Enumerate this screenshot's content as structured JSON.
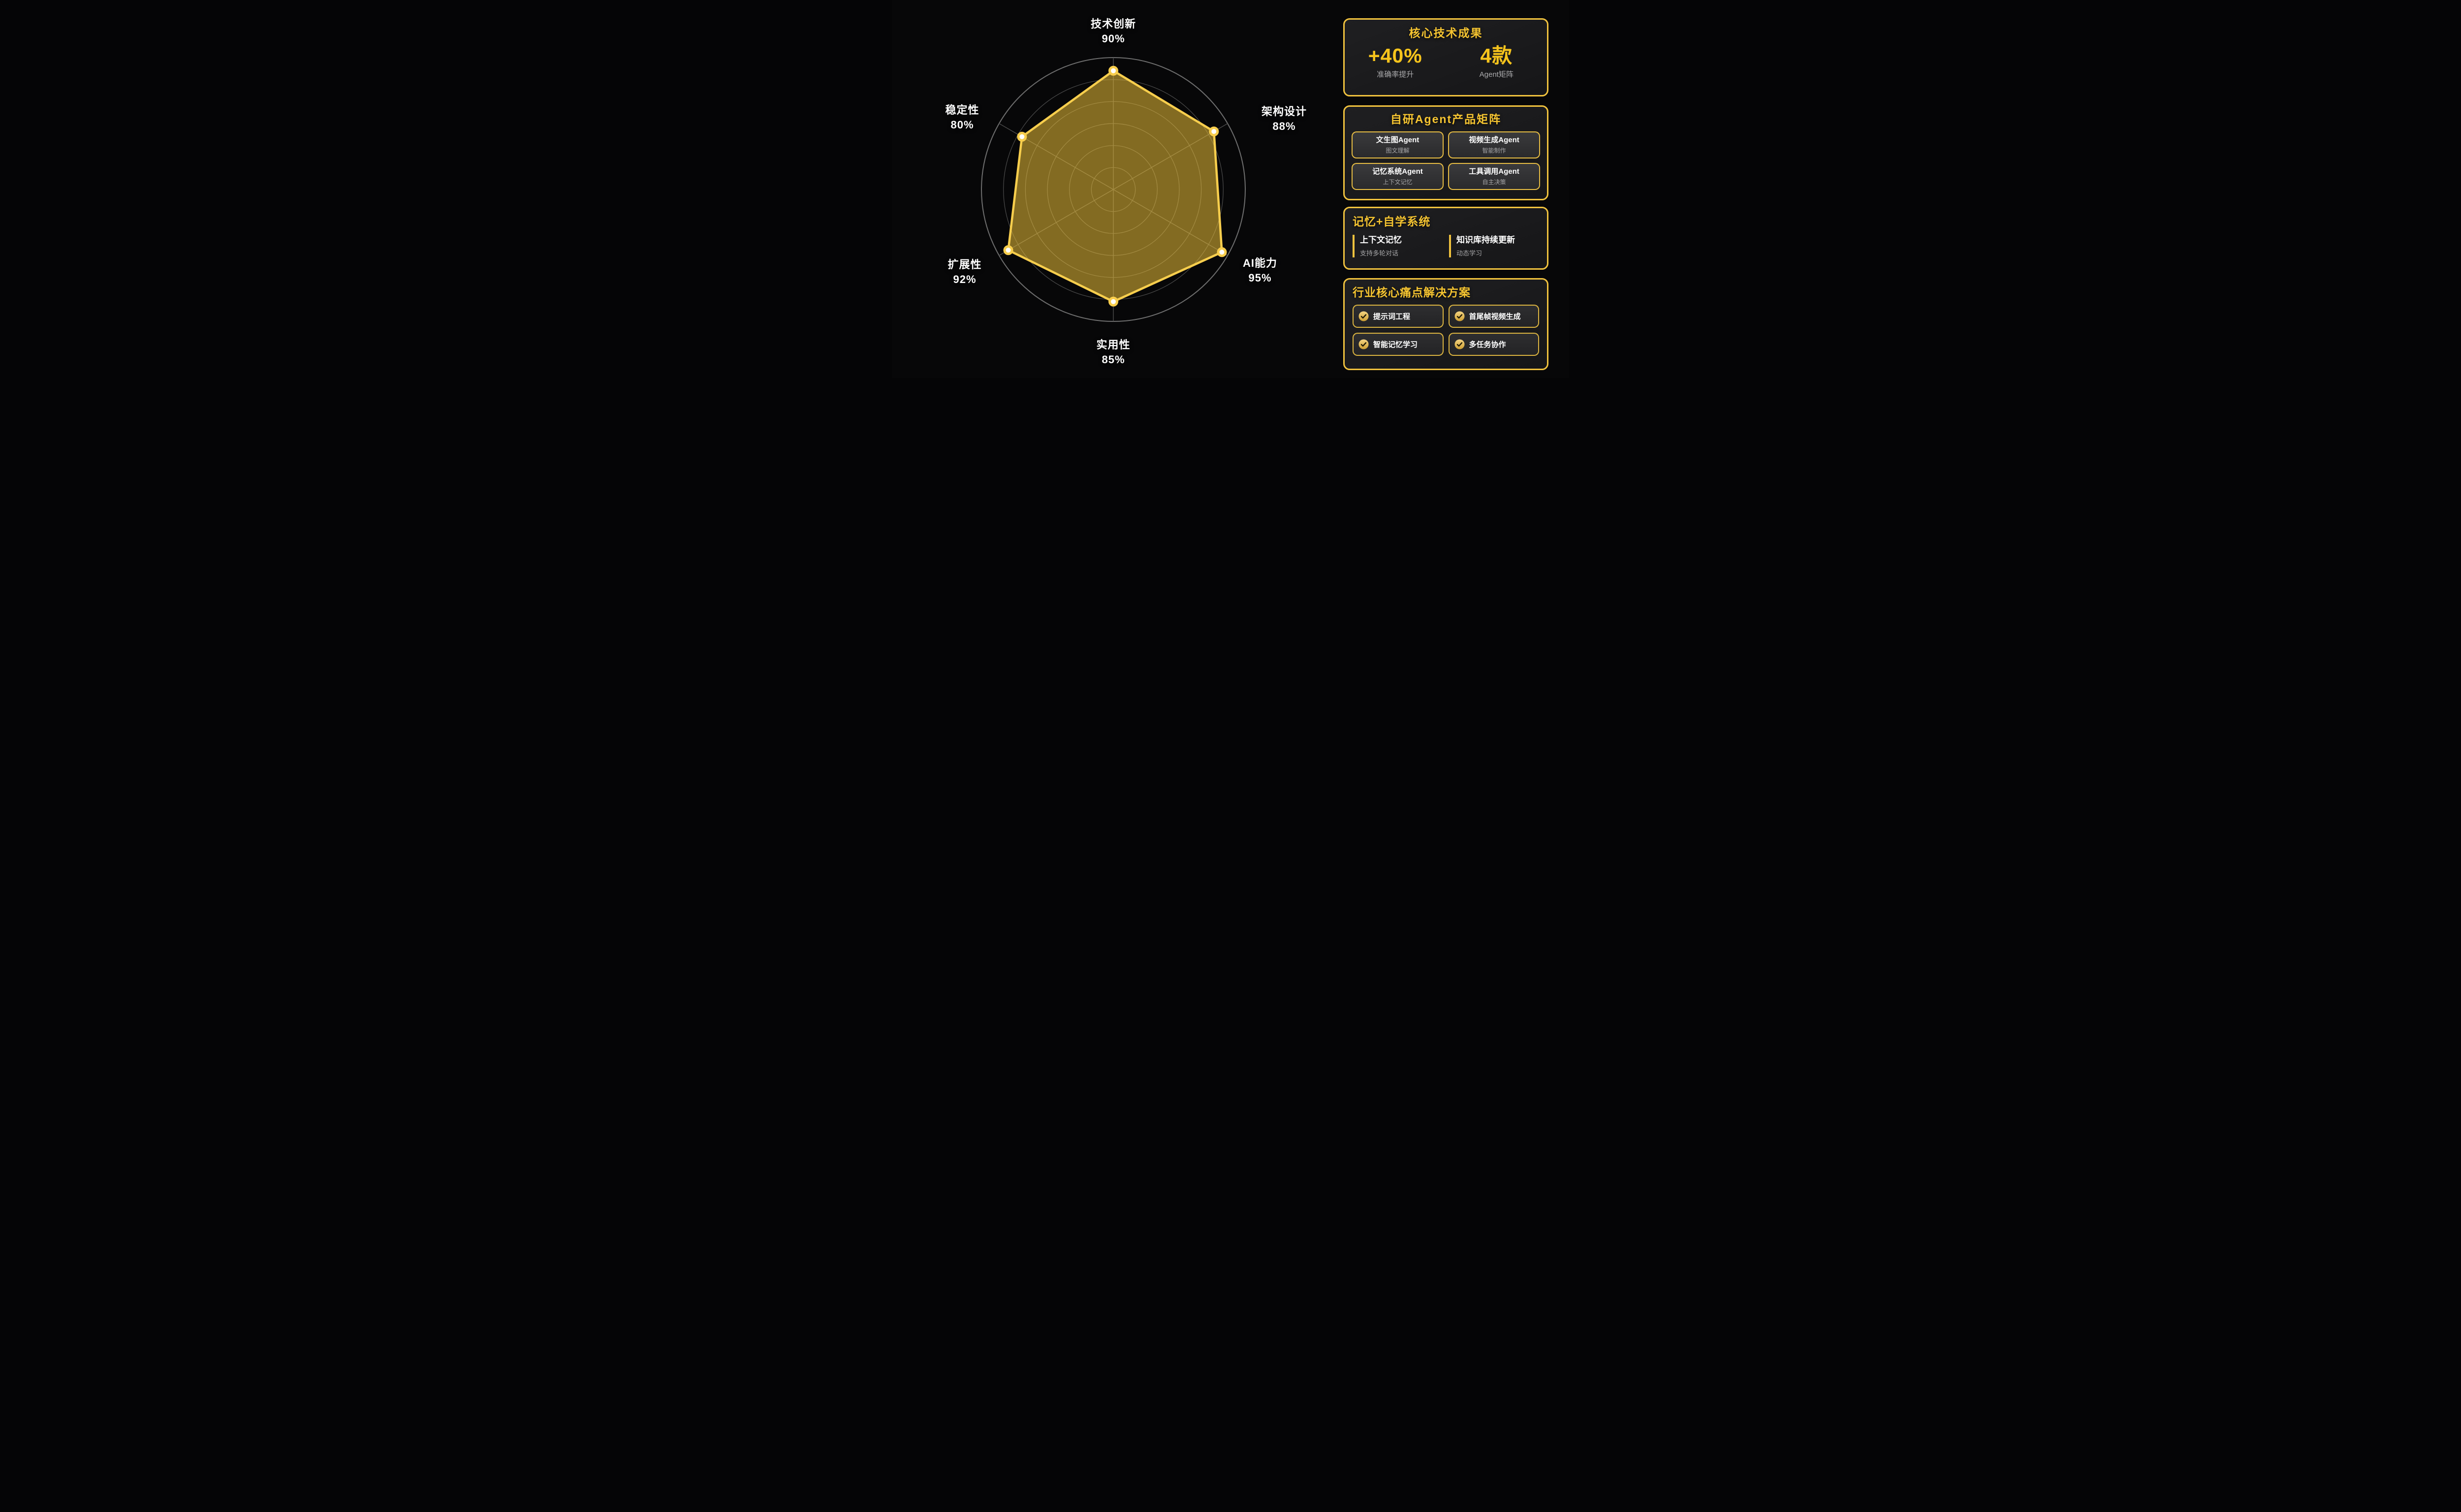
{
  "background": "#070708",
  "colors": {
    "accent_yellow": "#F5C431",
    "value_yellow": "#F7C41C",
    "panel_border": "#F0C23E",
    "card_border": "#EFC344",
    "white": "#FFFFFF",
    "muted_gray": "#A9A9AB",
    "grid_gray": "#4C4C4C",
    "grid_outer_gray": "#6E6E6E",
    "radar_fill": "#F6C83C",
    "radar_stroke": "#F8CE4D",
    "dot_fill": "#FFFFFF"
  },
  "chart_data": {
    "type": "radar",
    "categories": [
      "技术创新",
      "架构设计",
      "AI能力",
      "实用性",
      "扩展性",
      "稳定性"
    ],
    "values": [
      90,
      88,
      95,
      85,
      92,
      80
    ],
    "unit": "%",
    "max": 100,
    "rings": 6,
    "grid": "circular",
    "legend": "none",
    "title": ""
  },
  "panels": {
    "core": {
      "title": "核心技术成果",
      "stats": [
        {
          "value": "+40%",
          "label": "准确率提升"
        },
        {
          "value": "4款",
          "label": "Agent矩阵"
        }
      ]
    },
    "matrix": {
      "title": "自研Agent产品矩阵",
      "cards": [
        {
          "title": "文生图Agent",
          "subtitle": "图文理解"
        },
        {
          "title": "视频生成Agent",
          "subtitle": "智能制作"
        },
        {
          "title": "记忆系统Agent",
          "subtitle": "上下文记忆"
        },
        {
          "title": "工具调用Agent",
          "subtitle": "自主决策"
        }
      ]
    },
    "memory": {
      "title": "记忆+自学系统",
      "items": [
        {
          "title": "上下文记忆",
          "subtitle": "支持多轮对话"
        },
        {
          "title": "知识库持续更新",
          "subtitle": "动态学习"
        }
      ]
    },
    "solutions": {
      "title": "行业核心痛点解决方案",
      "items": [
        {
          "icon": "check",
          "label": "提示词工程"
        },
        {
          "icon": "check",
          "label": "首尾帧视频生成"
        },
        {
          "icon": "check",
          "label": "智能记忆学习"
        },
        {
          "icon": "check",
          "label": "多任务协作"
        }
      ]
    }
  }
}
